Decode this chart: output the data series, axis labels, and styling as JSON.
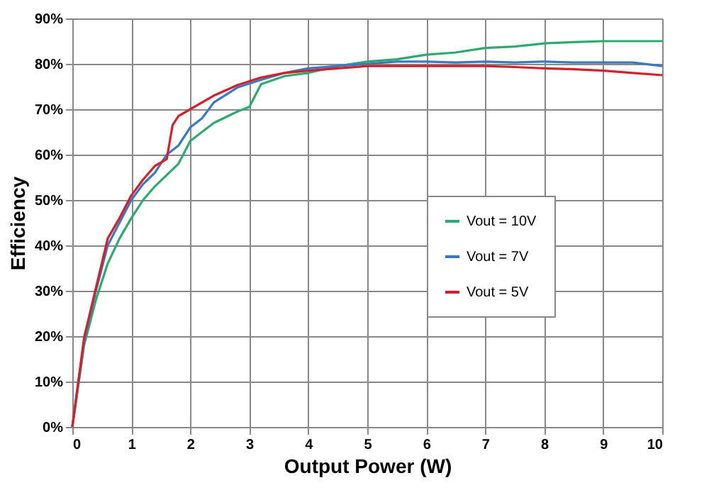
{
  "chart_data": {
    "type": "line",
    "xlabel": "Output Power (W)",
    "ylabel": "Efficiency",
    "xlim": [
      0,
      10
    ],
    "xticks": [
      0,
      1,
      2,
      3,
      4,
      5,
      6,
      7,
      8,
      9,
      10
    ],
    "ylim": [
      0,
      90
    ],
    "yticks": [
      {
        "value": 0,
        "label": "0%"
      },
      {
        "value": 10,
        "label": "10%"
      },
      {
        "value": 20,
        "label": "20%"
      },
      {
        "value": 30,
        "label": "30%"
      },
      {
        "value": 40,
        "label": "40%"
      },
      {
        "value": 50,
        "label": "50%"
      },
      {
        "value": 60,
        "label": "60%"
      },
      {
        "value": 70,
        "label": "70%"
      },
      {
        "value": 80,
        "label": "80%"
      },
      {
        "value": 90,
        "label": "90%"
      }
    ],
    "grid": true,
    "legend": "right",
    "marker": "none",
    "line_style": "solid",
    "series": [
      {
        "name": "Vout = 10V",
        "color": "#2eaa6e",
        "x": [
          0,
          0.2,
          0.4,
          0.6,
          0.8,
          1.0,
          1.2,
          1.4,
          1.6,
          1.8,
          2.0,
          2.4,
          2.8,
          3.0,
          3.2,
          3.6,
          4,
          4.5,
          5,
          5.5,
          6,
          6.5,
          7,
          7.5,
          8,
          8.5,
          9,
          9.5,
          10
        ],
        "values": [
          0,
          18,
          28,
          36,
          41.5,
          46,
          50,
          53,
          55.5,
          58,
          63,
          67,
          69.5,
          70.5,
          75.5,
          77.3,
          78,
          79.5,
          80.5,
          81,
          82,
          82.5,
          83.5,
          83.8,
          84.5,
          84.8,
          85,
          85,
          85
        ]
      },
      {
        "name": "Vout = 7V",
        "color": "#3a78c4",
        "x": [
          0,
          0.2,
          0.4,
          0.6,
          0.8,
          1.0,
          1.2,
          1.4,
          1.6,
          1.8,
          2.0,
          2.2,
          2.4,
          2.8,
          3.2,
          3.6,
          4,
          4.5,
          5,
          5.5,
          6,
          6.5,
          7,
          7.5,
          8,
          8.5,
          9,
          9.5,
          10
        ],
        "values": [
          0,
          19,
          30,
          40,
          45,
          50,
          53.5,
          56,
          60,
          62,
          66,
          68,
          71.5,
          74.8,
          76.5,
          78,
          79,
          79.5,
          80,
          80.5,
          80.5,
          80.3,
          80.5,
          80.3,
          80.5,
          80.3,
          80.3,
          80.3,
          79.5
        ]
      },
      {
        "name": "Vout = 5V",
        "color": "#d4202a",
        "x": [
          0,
          0.2,
          0.4,
          0.6,
          0.8,
          1.0,
          1.2,
          1.4,
          1.6,
          1.7,
          1.8,
          2.0,
          2.4,
          2.8,
          3.2,
          3.6,
          4,
          4.5,
          5,
          5.5,
          6,
          6.5,
          7,
          7.5,
          8,
          8.5,
          9,
          9.5,
          10
        ],
        "values": [
          0,
          19.7,
          30.6,
          41.5,
          46,
          51,
          54.5,
          57.5,
          59,
          66.5,
          68.5,
          70,
          73,
          75.3,
          77,
          78,
          78.5,
          79,
          79.5,
          79.5,
          79.5,
          79.5,
          79.5,
          79.3,
          79,
          78.8,
          78.5,
          78,
          77.5
        ]
      }
    ]
  }
}
